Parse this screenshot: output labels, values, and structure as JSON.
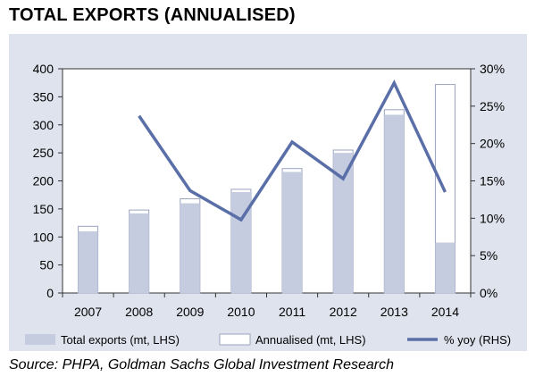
{
  "title": "TOTAL EXPORTS (ANNUALISED)",
  "source": "Source: PHPA, Goldman Sachs Global Investment Research",
  "chart_data": {
    "type": "bar",
    "categories": [
      "2007",
      "2008",
      "2009",
      "2010",
      "2011",
      "2012",
      "2013",
      "2014"
    ],
    "series": [
      {
        "name": "Total exports (mt, LHS)",
        "kind": "bar-filled",
        "axis": "left",
        "values": [
          110,
          142,
          160,
          180,
          216,
          250,
          318,
          90
        ],
        "color": "#c5cce0"
      },
      {
        "name": "Annualised (mt, LHS)",
        "kind": "bar-outline",
        "axis": "left",
        "values": [
          119,
          148,
          168,
          185,
          222,
          255,
          327,
          372
        ],
        "color": "#ffffff"
      },
      {
        "name": "% yoy (RHS)",
        "kind": "line",
        "axis": "right",
        "values": [
          null,
          23.7,
          13.7,
          9.8,
          20.2,
          15.3,
          28.1,
          13.5
        ],
        "color": "#5a6fa8"
      }
    ],
    "y_left": {
      "min": 0,
      "max": 400,
      "ticks": [
        "0",
        "50",
        "100",
        "150",
        "200",
        "250",
        "300",
        "350",
        "400"
      ]
    },
    "y_right": {
      "min": 0,
      "max": 30,
      "ticks": [
        "0%",
        "5%",
        "10%",
        "15%",
        "20%",
        "25%",
        "30%"
      ]
    },
    "grid": false,
    "legend_position": "bottom"
  }
}
